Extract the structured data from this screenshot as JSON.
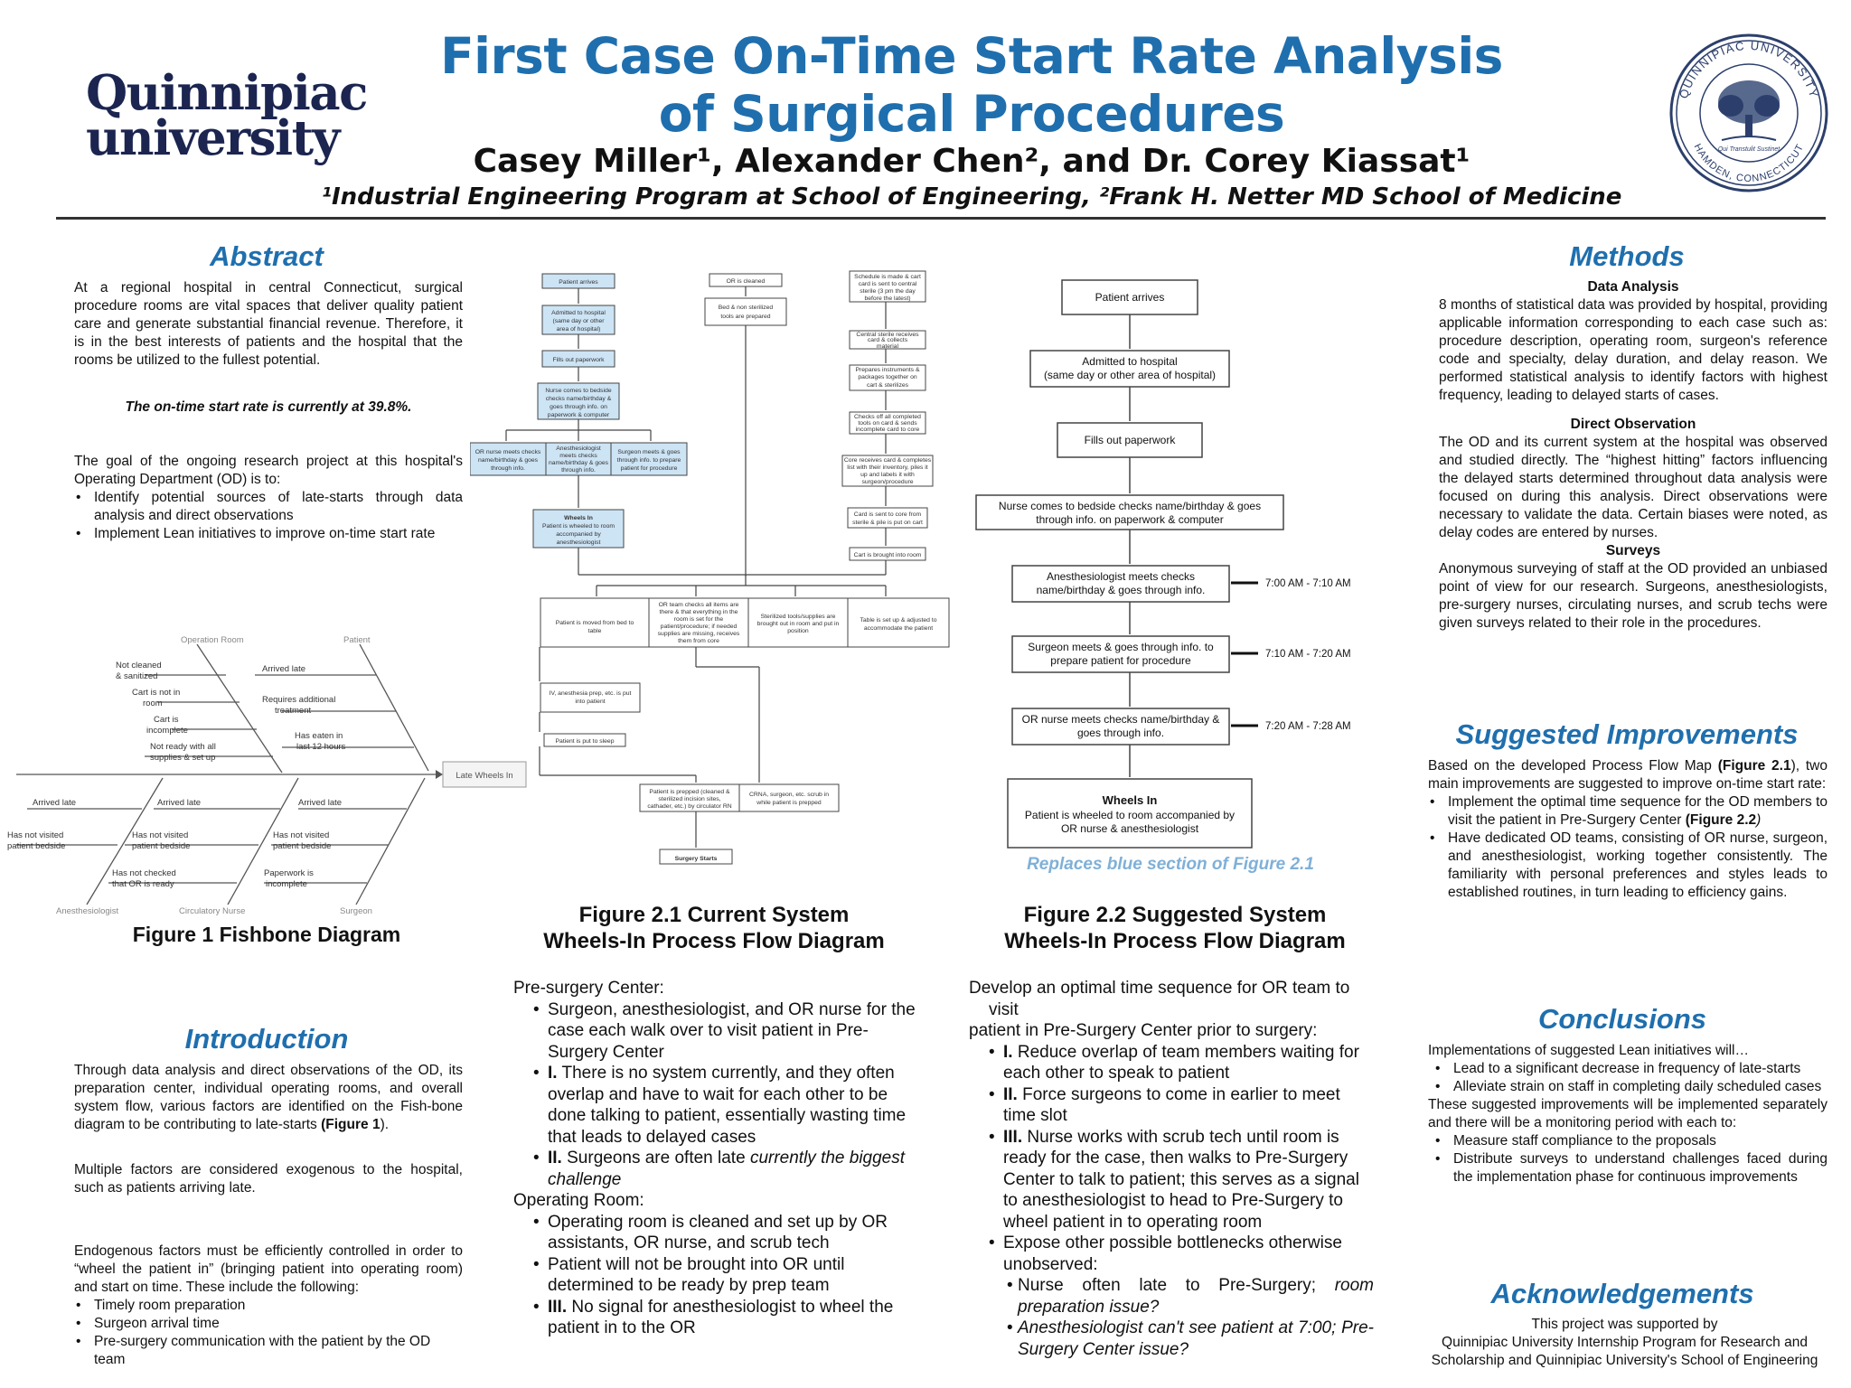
{
  "header": {
    "title_line1": "First Case On-Time Start Rate Analysis",
    "title_line2": "of Surgical Procedures",
    "authors": "Casey Miller¹, Alexander Chen², and Dr. Corey Kiassat¹",
    "affiliations": "¹Industrial Engineering Program at School of Engineering, ²Frank H. Netter MD School of Medicine",
    "logo_line1": "Quinnipiac",
    "logo_line2": "university",
    "seal_text_top": "QUINNIPIAC UNIVERSITY",
    "seal_text_bottom": "HAMDEN, CONNECTICUT",
    "seal_motto": "Qui Transtulit Sustinet"
  },
  "abstract": {
    "heading": "Abstract",
    "p1": "At a regional hospital in central Connecticut, surgical procedure rooms are vital spaces that deliver quality patient care and generate substantial financial revenue. Therefore, it is in the best interests of patients and the hospital that the rooms be utilized to the fullest potential.",
    "highlight": "The on-time start rate is currently at 39.8%.",
    "p2": "The goal of the ongoing research project at this hospital's Operating Department (OD) is to:",
    "bullets": [
      "Identify potential sources of late-starts through data analysis and direct observations",
      "Implement  Lean initiatives to improve on-time start rate"
    ]
  },
  "fishbone": {
    "caption": "Figure 1 Fishbone Diagram",
    "effect": "Late Wheels In",
    "categories": {
      "top_left": "Operation Room",
      "top_right": "Patient",
      "bottom_left": "Anesthesiologist",
      "bottom_mid": "Circulatory Nurse",
      "bottom_right": "Surgeon"
    },
    "or_causes": [
      "Not cleaned",
      "& sanitized",
      "Cart is not in",
      "room",
      "Cart is",
      "incomplete",
      "Not ready with all",
      "supplies & set up"
    ],
    "patient_causes": [
      "Arrived late",
      "Requires additional",
      "treatment",
      "Has eaten in",
      "last 12 hours"
    ],
    "anes_causes": [
      "Arrived late",
      "Has not visited",
      "patient bedside"
    ],
    "nurse_causes": [
      "Arrived late",
      "Has not visited",
      "patient bedside",
      "Has not checked",
      "that OR is ready"
    ],
    "surgeon_causes": [
      "Arrived late",
      "Has not visited",
      "patient bedside",
      "Paperwork is",
      "incomplete"
    ]
  },
  "introduction": {
    "heading": "Introduction",
    "p1": "Through data analysis and direct observations of the OD, its preparation center, individual operating rooms, and overall system flow, various factors are identified on the Fish-bone diagram to be contributing to late-starts",
    "p1_ref": "(Figure 1",
    "p1_end": ").",
    "p2": "Multiple factors are considered exogenous to the hospital, such as patients arriving late.",
    "p3": "Endogenous factors must be efficiently controlled in order to “wheel the patient in” (bringing patient into operating room) and start on time. These include the following:",
    "bullets": [
      "Timely room preparation",
      "Surgeon arrival time",
      "Pre-surgery communication with the patient by the OD team"
    ]
  },
  "fig21": {
    "caption_line1": "Figure 2.1 Current System",
    "caption_line2": "Wheels-In Process Flow Diagram",
    "col1": [
      "Patient arrives",
      "Admitted to hospital",
      "(same day or other",
      "area of hospital)",
      "Fills out paperwork",
      "Nurse comes to bedside",
      "checks name/birthday &",
      "goes through info. on",
      "paperwork & computer"
    ],
    "row3": [
      "OR nurse meets checks",
      "name/birthday & goes",
      "through info.",
      "Anesthesiologist",
      "meets checks",
      "name/birthday & goes",
      "through info.",
      "Surgeon meets & goes",
      "through info. to prepare",
      "patient for procedure"
    ],
    "wheels": [
      "Wheels In",
      "Patient is wheeled to room",
      "accompanied by",
      "anesthesiologist"
    ],
    "col2": [
      "OR is cleaned",
      "Bed & non sterilized",
      "tools are prepared"
    ],
    "col3": [
      "Schedule is made & cart",
      "card is sent to central",
      "sterile (3 pm the day",
      "before the latest)",
      "Central sterile receives",
      "card & collects",
      "material",
      "Prepares instruments &",
      "packages together on",
      "cart & sterilizes",
      "Checks off all completed",
      "tools on card & sends",
      "incomplete card to core",
      "Core receives card & completes",
      "list with their inventory, piles it",
      "up and labels it with",
      "surgeon/procedure",
      "Card is sent to core from",
      "sterile & pile is put on cart",
      "Cart is brought into room"
    ],
    "row5": [
      "Patient is moved from bed to",
      "table",
      "OR team checks all items are",
      "there & that everything in the",
      "room is set for the",
      "patient/procedure; if needed",
      "supplies are missing, receives",
      "them from core",
      "Sterilized tools/supplies are",
      "brought out in room and put in",
      "position",
      "Table is set up & adjusted to",
      "accommodate the patient"
    ],
    "tail": [
      "IV, anesthesia prep, etc. is put",
      "into patient",
      "Patient is put to sleep",
      "Patient is prepped (cleaned &",
      "sterilized incision sites,",
      "cathader, etc.) by circulator RN",
      "CRNA, surgeon, etc. scrub in",
      "while patient is prepped",
      "Surgery Starts"
    ]
  },
  "fig22": {
    "caption_line1": "Figure 2.2 Suggested System",
    "caption_line2": "Wheels-In Process Flow Diagram",
    "boxes": [
      "Patient arrives",
      "Admitted to hospital",
      "(same day or other area of hospital)",
      "Fills out paperwork",
      "Nurse comes to bedside checks name/birthday & goes",
      "through info. on paperwork & computer",
      "Anesthesiologist meets checks",
      "name/birthday & goes through info.",
      "Surgeon meets & goes through info. to",
      "prepare patient for procedure",
      "OR nurse meets checks name/birthday &",
      "goes through info.",
      "Wheels In",
      "Patient is wheeled to room accompanied by",
      "OR nurse & anesthesiologist"
    ],
    "times": [
      "7:00 AM - 7:10 AM",
      "7:10 AM - 7:20 AM",
      "7:20 AM - 7:28 AM"
    ],
    "note": "Replaces blue section of Figure 2.1"
  },
  "presurgery": {
    "label1": "Pre-surgery Center:",
    "b1": "Surgeon, anesthesiologist, and OR nurse for the case each walk over to visit patient in Pre-Surgery Center",
    "b2_num": "I.",
    "b2": " There is no system currently, and they often overlap and have to wait for each other to be done talking to patient, essentially wasting time that leads to delayed cases",
    "b3_num": "II.",
    "b3": " Surgeons are often late ",
    "b3_it": "currently the biggest challenge",
    "label2": "Operating Room:",
    "b4": "Operating room is cleaned and set up by OR assistants, OR nurse, and scrub tech",
    "b5": "Patient will not be brought into OR until determined to be ready by prep team",
    "b6_num": "III.",
    "b6": " No signal for anesthesiologist to wheel the patient in to the OR"
  },
  "sequence": {
    "intro1": "Develop an optimal time sequence for OR team to",
    "intro2": "visit",
    "intro3": "patient in Pre-Surgery Center prior to surgery:",
    "b1_num": "I.",
    "b1": " Reduce overlap of team members waiting for each other to speak to patient",
    "b2_num": "II.",
    "b2": " Force surgeons to come in earlier to meet time slot",
    "b3_num": "III.",
    "b3": " Nurse works with scrub tech until room is ready for the case, then walks to Pre-Surgery Center to talk to patient; this serves as a signal to anesthesiologist to head to Pre-Surgery to wheel patient in to operating room",
    "b4": "Expose other possible bottlenecks otherwise unobserved:",
    "s1": "Nurse often late to Pre-Surgery; ",
    "s1_it": "room preparation issue?",
    "s2_it": "Anesthesiologist can't see patient at 7:00; Pre-Surgery Center issue?"
  },
  "methods": {
    "heading": "Methods",
    "sub1": "Data Analysis",
    "p1": "8 months of statistical data was provided by hospital, providing  applicable information corresponding to each case such as: procedure description, operating room, surgeon's reference code and specialty, delay duration, and delay reason. We performed statistical analysis to identify factors with highest frequency, leading to delayed starts of cases.",
    "sub2": "Direct Observation",
    "p2": "The OD and its current system at the hospital was observed and studied directly. The “highest hitting” factors influencing the delayed starts determined throughout data analysis were focused on during this analysis. Direct observations were necessary to validate the data. Certain biases were noted, as delay codes are entered by nurses.",
    "sub3": "Surveys",
    "p3": "Anonymous surveying of staff at the OD provided an unbiased point of view for our research. Surgeons, anesthesiologists, pre-surgery nurses, circulating nurses, and scrub techs were given surveys related to their role in the procedures."
  },
  "improvements": {
    "heading": "Suggested Improvements",
    "p1": "Based on the developed Process Flow Map ",
    "p1_ref": "(Figure 2.1",
    "p1_end": "), two main improvements are suggested to improve on-time start rate:",
    "b1": "Implement the optimal time sequence for the OD members to visit the patient in Pre-Surgery Center ",
    "b1_ref": "(Figure 2.2",
    "b1_end": ")",
    "b2": "Have dedicated OD teams, consisting of OR nurse, surgeon, and anesthesiologist, working together consistently. The familiarity with personal preferences and styles leads to established routines, in turn leading to efficiency gains."
  },
  "conclusions": {
    "heading": "Conclusions",
    "p1": "Implementations of suggested Lean initiatives will…",
    "b1": "Lead to a significant decrease in frequency of late-starts",
    "b2": "Alleviate strain on staff in completing daily scheduled cases",
    "p2": "These suggested improvements will be implemented separately and there will be a monitoring period with each to:",
    "b3": "Measure staff compliance to the proposals",
    "b4": "Distribute surveys to understand challenges faced during the implementation phase for continuous improvements"
  },
  "ack": {
    "heading": "Acknowledgements",
    "p1": "This project was supported by",
    "p2": "Quinnipiac University Internship Program for Research and Scholarship and Quinnipiac University's School of Engineering"
  },
  "colors": {
    "accent": "#1f6fae",
    "blue_box": "#cde4f5",
    "navy": "#1b2550"
  }
}
